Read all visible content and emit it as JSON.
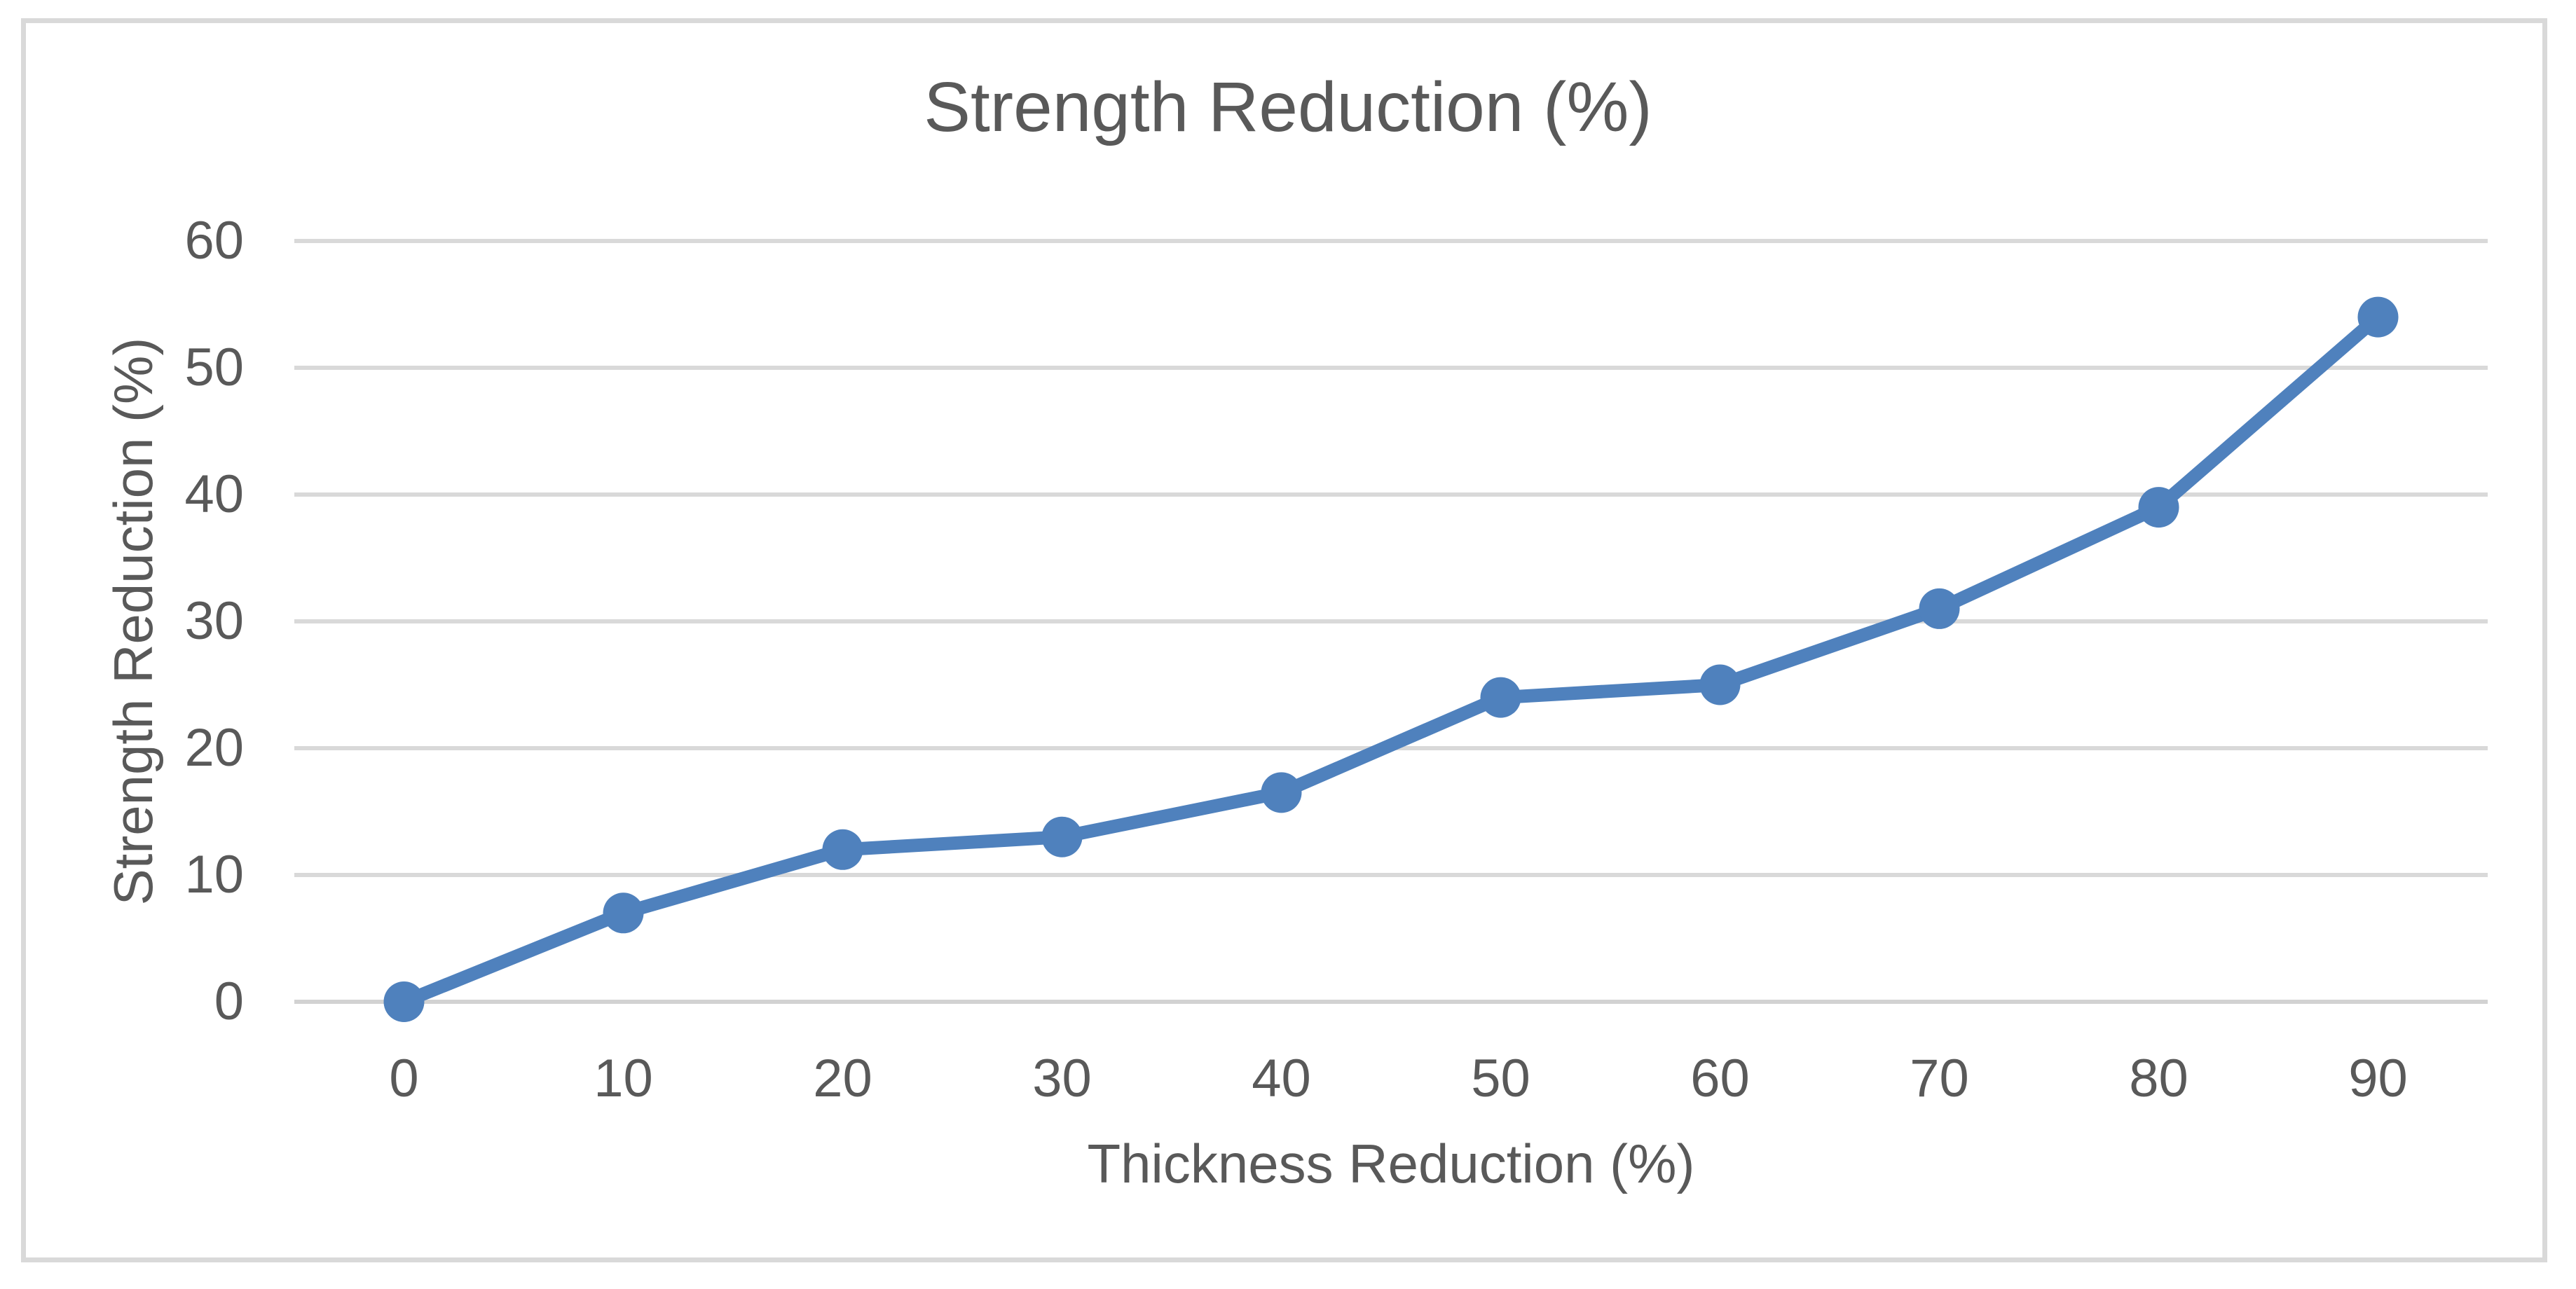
{
  "window": {
    "background_color": "#FFFFFF",
    "border_color": "#D9D9D9"
  },
  "chart_data": {
    "type": "line",
    "title": "Strength Reduction (%)",
    "xlabel": "Thickness Reduction (%)",
    "ylabel": "Strength Reduction (%)",
    "categories": [
      0,
      10,
      20,
      30,
      40,
      50,
      60,
      70,
      80,
      90
    ],
    "series": [
      {
        "name": "Strength Reduction (%)",
        "values": [
          0,
          7,
          12,
          13,
          16.5,
          24,
          25,
          31,
          39,
          54
        ]
      }
    ],
    "y_ticks": [
      0,
      10,
      20,
      30,
      40,
      50,
      60
    ],
    "ylim": [
      0,
      60
    ],
    "grid": true,
    "legend": false,
    "marker": "circle",
    "line_color": "#4F81BD",
    "marker_color": "#4F81BD",
    "grid_color": "#D9D9D9",
    "axis_line_color": "#D2D2D2",
    "text_color": "#595959"
  }
}
